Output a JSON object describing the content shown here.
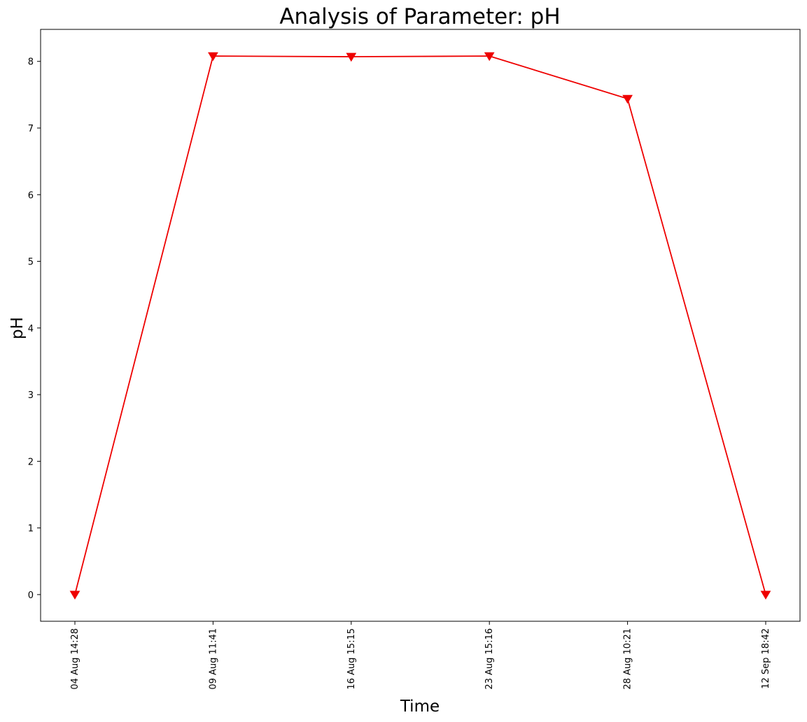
{
  "chart_data": {
    "type": "line",
    "title": "Analysis of Parameter: pH",
    "xlabel": "Time",
    "ylabel": "pH",
    "categories": [
      "04 Aug 14:28",
      "09 Aug 11:41",
      "16 Aug 15:15",
      "23 Aug 15:16",
      "28 Aug 10:21",
      "12 Sep 18:42"
    ],
    "series": [
      {
        "values": [
          0.0,
          8.08,
          8.07,
          8.08,
          7.44,
          0.0
        ],
        "color": "#ee0000",
        "marker": "triangle-down"
      }
    ],
    "ylim": [
      -0.4,
      8.48
    ],
    "yticks": [
      0,
      1,
      2,
      3,
      4,
      5,
      6,
      7,
      8
    ],
    "grid": false,
    "legend": "none"
  }
}
